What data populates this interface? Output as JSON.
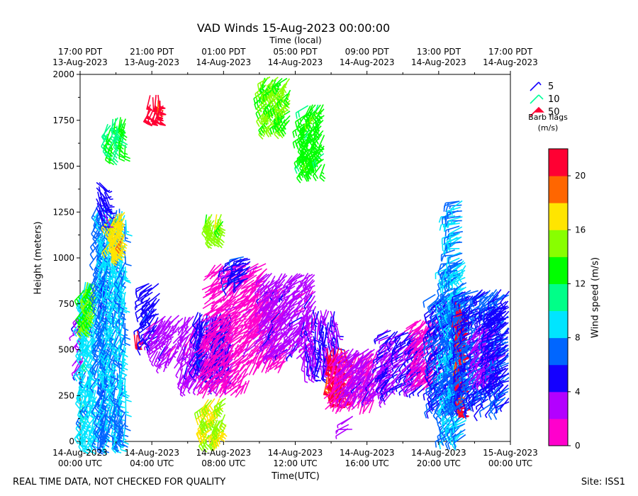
{
  "chart_data": {
    "type": "wind-barb",
    "title": "VAD Winds 15-Aug-2023 00:00:00",
    "top_axis_label": "Time (local)",
    "xlabel": "Time(UTC)",
    "ylabel": "Height (meters)",
    "xlim_hours_utc": [
      0,
      24
    ],
    "ylim": [
      0,
      2000
    ],
    "yticks": [
      0,
      250,
      500,
      750,
      1000,
      1250,
      1500,
      1750,
      2000
    ],
    "bottom_ticks": [
      {
        "hour": 0,
        "line1": "14-Aug-2023",
        "line2": "00:00 UTC"
      },
      {
        "hour": 4,
        "line1": "14-Aug-2023",
        "line2": "04:00 UTC"
      },
      {
        "hour": 8,
        "line1": "14-Aug-2023",
        "line2": "08:00 UTC"
      },
      {
        "hour": 12,
        "line1": "14-Aug-2023",
        "line2": "12:00 UTC"
      },
      {
        "hour": 16,
        "line1": "14-Aug-2023",
        "line2": "16:00 UTC"
      },
      {
        "hour": 20,
        "line1": "14-Aug-2023",
        "line2": "20:00 UTC"
      },
      {
        "hour": 24,
        "line1": "15-Aug-2023",
        "line2": "00:00 UTC"
      }
    ],
    "top_ticks": [
      {
        "hour": 0,
        "line1": "17:00 PDT",
        "line2": "13-Aug-2023"
      },
      {
        "hour": 4,
        "line1": "21:00 PDT",
        "line2": "13-Aug-2023"
      },
      {
        "hour": 8,
        "line1": "01:00 PDT",
        "line2": "14-Aug-2023"
      },
      {
        "hour": 12,
        "line1": "05:00 PDT",
        "line2": "14-Aug-2023"
      },
      {
        "hour": 16,
        "line1": "09:00 PDT",
        "line2": "14-Aug-2023"
      },
      {
        "hour": 20,
        "line1": "13:00 PDT",
        "line2": "14-Aug-2023"
      },
      {
        "hour": 24,
        "line1": "17:00 PDT",
        "line2": "14-Aug-2023"
      }
    ],
    "legend": {
      "title_line1": "Barb flags",
      "title_line2": "(m/s)",
      "entries": [
        {
          "label": "5",
          "color": "#1400ff"
        },
        {
          "label": "10",
          "color": "#00ff99"
        },
        {
          "label": "50",
          "color": "#ff0033"
        }
      ]
    },
    "colorbar": {
      "label": "Wind speed (m/s)",
      "range": [
        0,
        22
      ],
      "ticks": [
        0,
        4,
        8,
        12,
        16,
        20
      ],
      "colors": [
        "#ff00cc",
        "#b300ff",
        "#1400ff",
        "#0066ff",
        "#00e5ff",
        "#00ff88",
        "#00ff00",
        "#88ff00",
        "#ffe500",
        "#ff6600",
        "#ff0033"
      ]
    },
    "wind_clusters": [
      {
        "t0": 0.0,
        "t1": 0.3,
        "h0": 400,
        "h1": 720,
        "speed": 3,
        "dir": 230
      },
      {
        "t0": 0.1,
        "t1": 1.0,
        "h0": 20,
        "h1": 880,
        "speed": 9,
        "dir": 250
      },
      {
        "t0": 0.2,
        "t1": 0.9,
        "h0": 650,
        "h1": 880,
        "speed": 14,
        "dir": 240
      },
      {
        "t0": 1.0,
        "t1": 1.6,
        "h0": 20,
        "h1": 1300,
        "speed": 7,
        "dir": 250
      },
      {
        "t0": 1.2,
        "t1": 2.6,
        "h0": 20,
        "h1": 1280,
        "speed": 8,
        "dir": 255
      },
      {
        "t0": 1.7,
        "t1": 2.6,
        "h0": 1050,
        "h1": 1260,
        "speed": 17,
        "dir": 245
      },
      {
        "t0": 0.9,
        "t1": 1.5,
        "h0": 1230,
        "h1": 1430,
        "speed": 5,
        "dir": 300
      },
      {
        "t0": 1.5,
        "t1": 2.6,
        "h0": 1600,
        "h1": 1780,
        "speed": 12,
        "dir": 250
      },
      {
        "t0": 3.9,
        "t1": 4.7,
        "h0": 1800,
        "h1": 1900,
        "speed": 21,
        "dir": 260
      },
      {
        "t0": 3.0,
        "t1": 3.5,
        "h0": 580,
        "h1": 620,
        "speed": 21,
        "dir": 260
      },
      {
        "t0": 3.7,
        "t1": 4.5,
        "h0": 550,
        "h1": 880,
        "speed": 5,
        "dir": 220
      },
      {
        "t0": 4.3,
        "t1": 5.6,
        "h0": 450,
        "h1": 700,
        "speed": 3,
        "dir": 230
      },
      {
        "t0": 5.7,
        "t1": 8.6,
        "h0": 330,
        "h1": 700,
        "speed": 3,
        "dir": 240
      },
      {
        "t0": 6.5,
        "t1": 8.5,
        "h0": 400,
        "h1": 720,
        "speed": 5,
        "dir": 250
      },
      {
        "t0": 7.0,
        "t1": 9.5,
        "h0": 300,
        "h1": 600,
        "speed": 1,
        "dir": 230
      },
      {
        "t0": 7.5,
        "t1": 10.5,
        "h0": 600,
        "h1": 980,
        "speed": 1,
        "dir": 220
      },
      {
        "t0": 8.5,
        "t1": 9.6,
        "h0": 880,
        "h1": 1020,
        "speed": 5,
        "dir": 210
      },
      {
        "t0": 9.6,
        "t1": 11.6,
        "h0": 430,
        "h1": 850,
        "speed": 1,
        "dir": 230
      },
      {
        "t0": 10.4,
        "t1": 13.2,
        "h0": 500,
        "h1": 930,
        "speed": 3,
        "dir": 225
      },
      {
        "t0": 7.0,
        "t1": 8.1,
        "h0": 1140,
        "h1": 1250,
        "speed": 15,
        "dir": 250
      },
      {
        "t0": 7.0,
        "t1": 8.2,
        "h0": 30,
        "h1": 250,
        "speed": 16,
        "dir": 230
      },
      {
        "t0": 10.3,
        "t1": 11.8,
        "h0": 1740,
        "h1": 2000,
        "speed": 14,
        "dir": 230
      },
      {
        "t0": 12.5,
        "t1": 13.7,
        "h0": 1500,
        "h1": 1850,
        "speed": 13,
        "dir": 230
      },
      {
        "t0": 12.5,
        "t1": 14.4,
        "h0": 400,
        "h1": 730,
        "speed": 4,
        "dir": 270
      },
      {
        "t0": 13.7,
        "t1": 14.8,
        "h0": 260,
        "h1": 520,
        "speed": 21,
        "dir": 270
      },
      {
        "t0": 14.2,
        "t1": 16.5,
        "h0": 220,
        "h1": 500,
        "speed": 1,
        "dir": 240
      },
      {
        "t0": 14.8,
        "t1": 17.5,
        "h0": 260,
        "h1": 520,
        "speed": 3,
        "dir": 230
      },
      {
        "t0": 14.9,
        "t1": 15.3,
        "h0": 60,
        "h1": 150,
        "speed": 3,
        "dir": 200
      },
      {
        "t0": 17.0,
        "t1": 19.5,
        "h0": 300,
        "h1": 620,
        "speed": 4,
        "dir": 220
      },
      {
        "t0": 18.7,
        "t1": 20.2,
        "h0": 340,
        "h1": 680,
        "speed": 1,
        "dir": 230
      },
      {
        "t0": 19.8,
        "t1": 21.8,
        "h0": 200,
        "h1": 820,
        "speed": 6,
        "dir": 225
      },
      {
        "t0": 20.5,
        "t1": 21.6,
        "h0": 30,
        "h1": 1000,
        "speed": 8,
        "dir": 220
      },
      {
        "t0": 20.9,
        "t1": 21.4,
        "h0": 900,
        "h1": 1330,
        "speed": 8,
        "dir": 200
      },
      {
        "t0": 20.9,
        "t1": 21.3,
        "h0": 200,
        "h1": 780,
        "speed": 21,
        "dir": 270
      },
      {
        "t0": 21.3,
        "t1": 24.0,
        "h0": 200,
        "h1": 840,
        "speed": 6,
        "dir": 215
      },
      {
        "t0": 22.2,
        "t1": 23.4,
        "h0": 350,
        "h1": 650,
        "speed": 3,
        "dir": 230
      },
      {
        "t0": 23.0,
        "t1": 24.0,
        "h0": 300,
        "h1": 750,
        "speed": 5,
        "dir": 210
      }
    ]
  },
  "footer": {
    "left": "REAL TIME DATA, NOT CHECKED FOR QUALITY",
    "right": "Site: ISS1"
  }
}
